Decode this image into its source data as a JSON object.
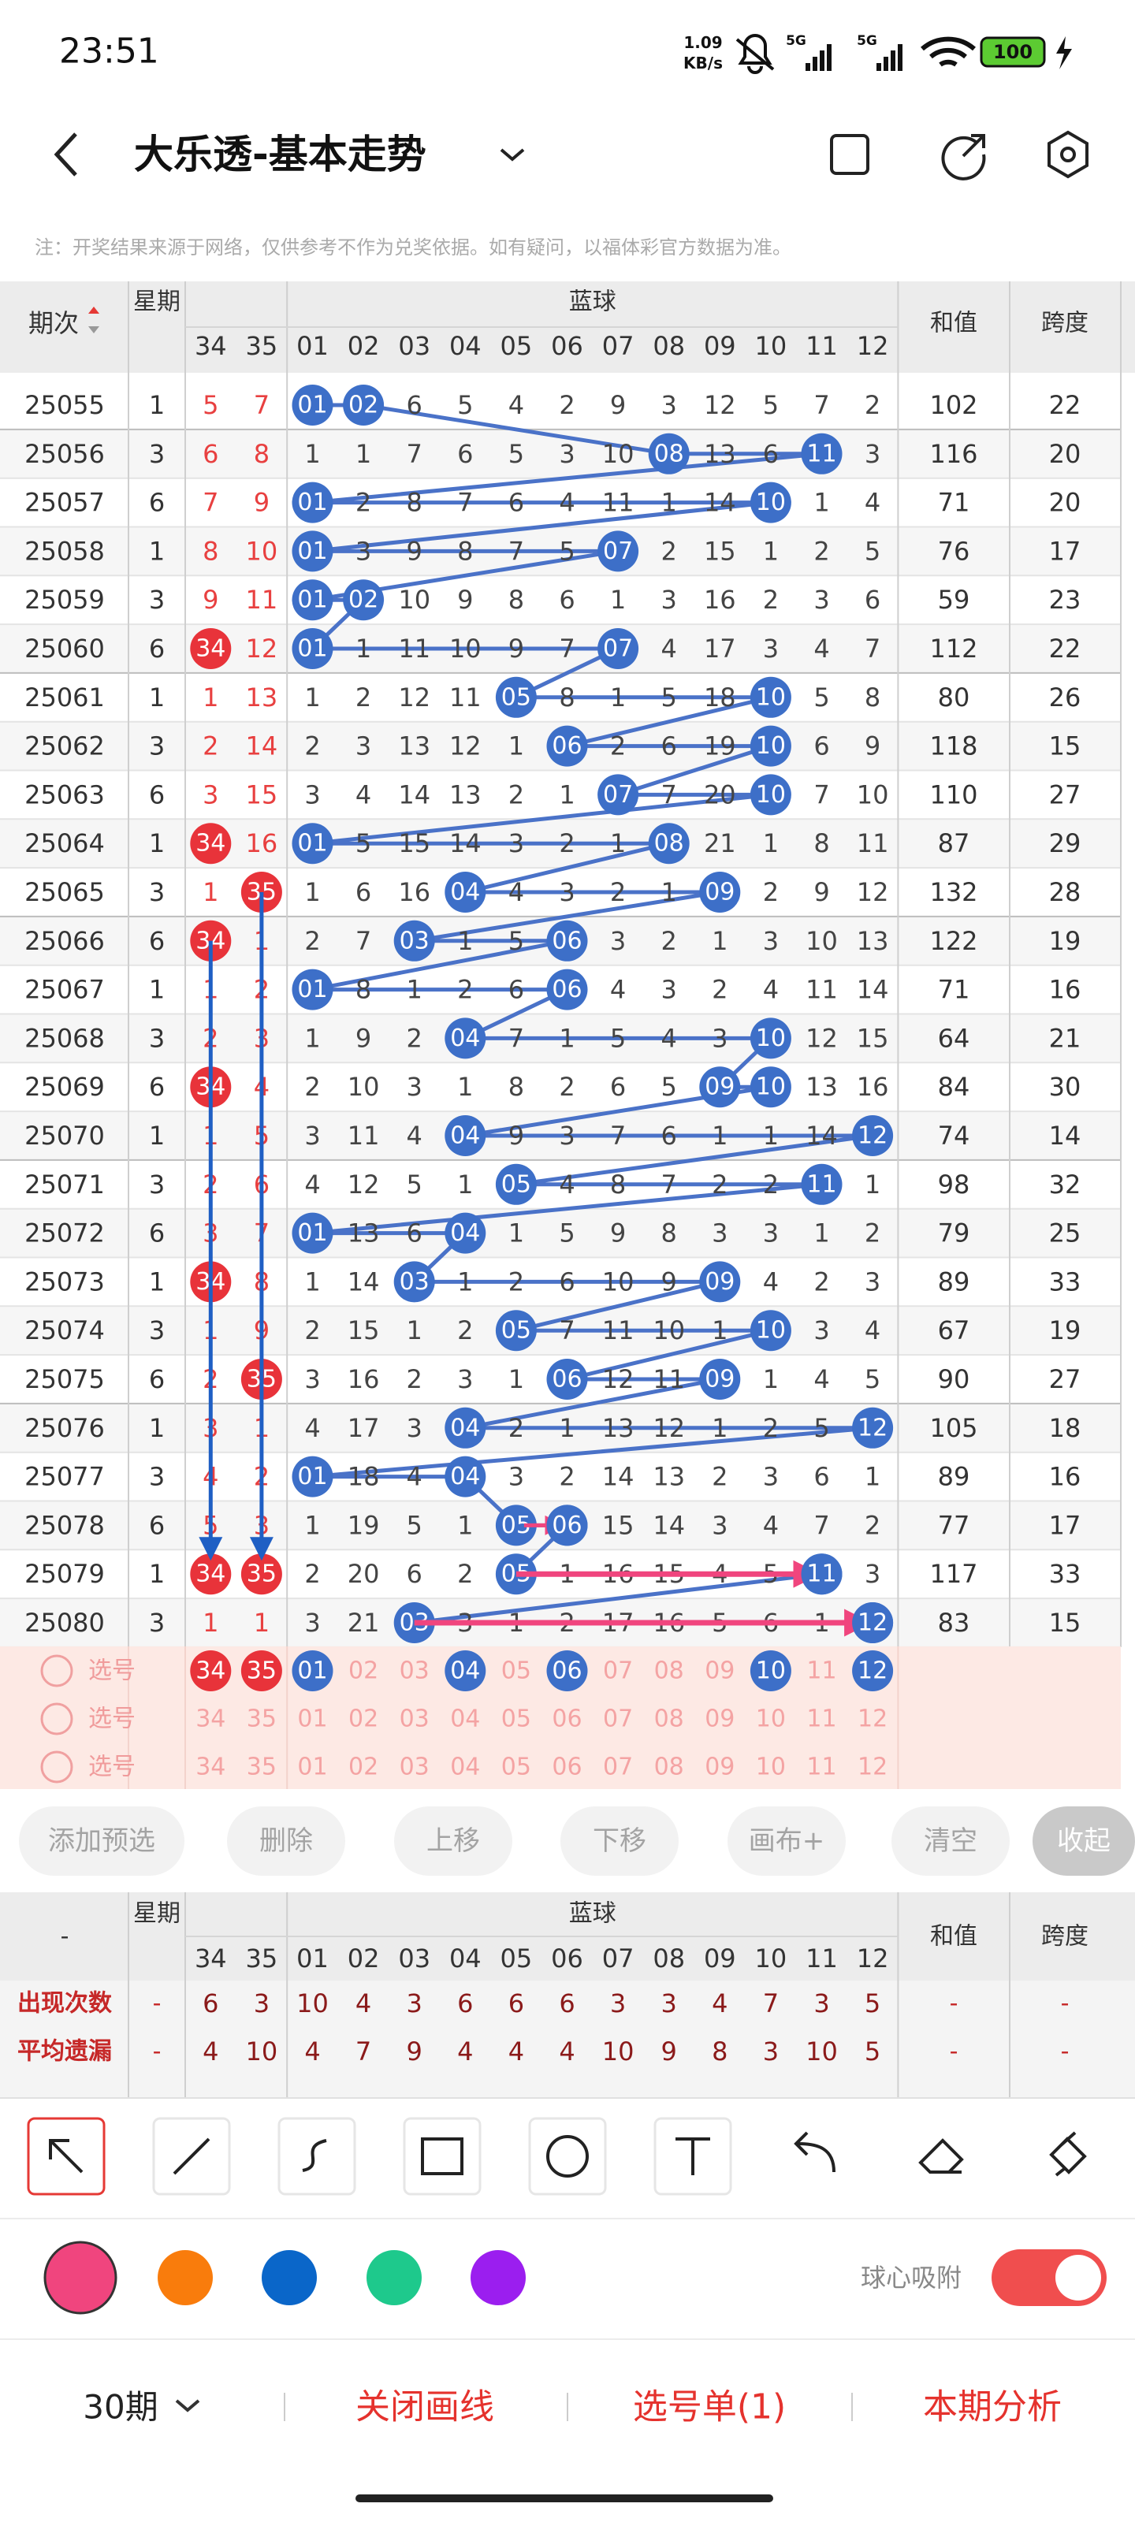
{
  "status_bar": {
    "time": "23:51",
    "speed": "1.09",
    "speed_unit": "KB/s",
    "net1": "5G",
    "net2": "5G",
    "battery": "100"
  },
  "header": {
    "title": "大乐透-基本走势"
  },
  "notice": "注：开奖结果来源于网络，仅供参考不作为兑奖依据。如有疑问，以福体彩官方数据为准。",
  "trend_table": {
    "columns": {
      "period": "期次",
      "weekday": "星期",
      "group": "蓝球",
      "numbers": [
        "34",
        "35",
        "01",
        "02",
        "03",
        "04",
        "05",
        "06",
        "07",
        "08",
        "09",
        "10",
        "11",
        "12"
      ],
      "sum": "和值",
      "span": "跨度"
    },
    "rows": [
      {
        "period": "25055",
        "weekday": "1",
        "cells": [
          "5",
          "7",
          {
            "ball": "01"
          },
          {
            "ball": "02"
          },
          "6",
          "5",
          "4",
          "2",
          "9",
          "3",
          "12",
          "5",
          "7",
          "2"
        ],
        "sum": "102",
        "span": "22"
      },
      {
        "period": "25056",
        "weekday": "3",
        "cells": [
          "6",
          "8",
          "1",
          "1",
          "7",
          "6",
          "5",
          "3",
          "10",
          {
            "ball": "08"
          },
          "13",
          "6",
          {
            "ball": "11"
          },
          "3"
        ],
        "sum": "116",
        "span": "20"
      },
      {
        "period": "25057",
        "weekday": "6",
        "cells": [
          "7",
          "9",
          {
            "ball": "01"
          },
          "2",
          "8",
          "7",
          "6",
          "4",
          "11",
          "1",
          "14",
          {
            "ball": "10"
          },
          "1",
          "4"
        ],
        "sum": "71",
        "span": "20"
      },
      {
        "period": "25058",
        "weekday": "1",
        "cells": [
          "8",
          "10",
          {
            "ball": "01"
          },
          "3",
          "9",
          "8",
          "7",
          "5",
          {
            "ball": "07"
          },
          "2",
          "15",
          "1",
          "2",
          "5"
        ],
        "sum": "76",
        "span": "17"
      },
      {
        "period": "25059",
        "weekday": "3",
        "cells": [
          "9",
          "11",
          {
            "ball": "01"
          },
          {
            "ball": "02"
          },
          "10",
          "9",
          "8",
          "6",
          "1",
          "3",
          "16",
          "2",
          "3",
          "6"
        ],
        "sum": "59",
        "span": "23"
      },
      {
        "period": "25060",
        "weekday": "6",
        "cells": [
          {
            "ball": "34"
          },
          "12",
          {
            "ball": "01"
          },
          "1",
          "11",
          "10",
          "9",
          "7",
          {
            "ball": "07"
          },
          "4",
          "17",
          "3",
          "4",
          "7"
        ],
        "sum": "112",
        "span": "22"
      },
      {
        "period": "25061",
        "weekday": "1",
        "cells": [
          "1",
          "13",
          "1",
          "2",
          "12",
          "11",
          {
            "ball": "05"
          },
          "8",
          "1",
          "5",
          "18",
          {
            "ball": "10"
          },
          "5",
          "8"
        ],
        "sum": "80",
        "span": "26"
      },
      {
        "period": "25062",
        "weekday": "3",
        "cells": [
          "2",
          "14",
          "2",
          "3",
          "13",
          "12",
          "1",
          {
            "ball": "06"
          },
          "2",
          "6",
          "19",
          {
            "ball": "10"
          },
          "6",
          "9"
        ],
        "sum": "118",
        "span": "15"
      },
      {
        "period": "25063",
        "weekday": "6",
        "cells": [
          "3",
          "15",
          "3",
          "4",
          "14",
          "13",
          "2",
          "1",
          {
            "ball": "07"
          },
          "7",
          "20",
          {
            "ball": "10"
          },
          "7",
          "10"
        ],
        "sum": "110",
        "span": "27"
      },
      {
        "period": "25064",
        "weekday": "1",
        "cells": [
          {
            "ball": "34"
          },
          "16",
          {
            "ball": "01"
          },
          "5",
          "15",
          "14",
          "3",
          "2",
          "1",
          {
            "ball": "08"
          },
          "21",
          "1",
          "8",
          "11"
        ],
        "sum": "87",
        "span": "29"
      },
      {
        "period": "25065",
        "weekday": "3",
        "cells": [
          "1",
          {
            "ball": "35"
          },
          "1",
          "6",
          "16",
          {
            "ball": "04"
          },
          "4",
          "3",
          "2",
          "1",
          {
            "ball": "09"
          },
          "2",
          "9",
          "12"
        ],
        "sum": "132",
        "span": "28"
      },
      {
        "period": "25066",
        "weekday": "6",
        "cells": [
          {
            "ball": "34"
          },
          "1",
          "2",
          "7",
          {
            "ball": "03"
          },
          "1",
          "5",
          {
            "ball": "06"
          },
          "3",
          "2",
          "1",
          "3",
          "10",
          "13"
        ],
        "sum": "122",
        "span": "19"
      },
      {
        "period": "25067",
        "weekday": "1",
        "cells": [
          "1",
          "2",
          {
            "ball": "01"
          },
          "8",
          "1",
          "2",
          "6",
          {
            "ball": "06"
          },
          "4",
          "3",
          "2",
          "4",
          "11",
          "14"
        ],
        "sum": "71",
        "span": "16"
      },
      {
        "period": "25068",
        "weekday": "3",
        "cells": [
          "2",
          "3",
          "1",
          "9",
          "2",
          {
            "ball": "04"
          },
          "7",
          "1",
          "5",
          "4",
          "3",
          {
            "ball": "10"
          },
          "12",
          "15"
        ],
        "sum": "64",
        "span": "21"
      },
      {
        "period": "25069",
        "weekday": "6",
        "cells": [
          {
            "ball": "34"
          },
          "4",
          "2",
          "10",
          "3",
          "1",
          "8",
          "2",
          "6",
          "5",
          {
            "ball": "09"
          },
          {
            "ball": "10"
          },
          "13",
          "16"
        ],
        "sum": "84",
        "span": "30"
      },
      {
        "period": "25070",
        "weekday": "1",
        "cells": [
          "1",
          "5",
          "3",
          "11",
          "4",
          {
            "ball": "04"
          },
          "9",
          "3",
          "7",
          "6",
          "1",
          "1",
          "14",
          {
            "ball": "12"
          }
        ],
        "sum": "74",
        "span": "14"
      },
      {
        "period": "25071",
        "weekday": "3",
        "cells": [
          "2",
          "6",
          "4",
          "12",
          "5",
          "1",
          {
            "ball": "05"
          },
          "4",
          "8",
          "7",
          "2",
          "2",
          {
            "ball": "11"
          },
          "1"
        ],
        "sum": "98",
        "span": "32"
      },
      {
        "period": "25072",
        "weekday": "6",
        "cells": [
          "3",
          "7",
          {
            "ball": "01"
          },
          "13",
          "6",
          {
            "ball": "04"
          },
          "1",
          "5",
          "9",
          "8",
          "3",
          "3",
          "1",
          "2"
        ],
        "sum": "79",
        "span": "25"
      },
      {
        "period": "25073",
        "weekday": "1",
        "cells": [
          {
            "ball": "34"
          },
          "8",
          "1",
          "14",
          {
            "ball": "03"
          },
          "1",
          "2",
          "6",
          "10",
          "9",
          {
            "ball": "09"
          },
          "4",
          "2",
          "3"
        ],
        "sum": "89",
        "span": "33"
      },
      {
        "period": "25074",
        "weekday": "3",
        "cells": [
          "1",
          "9",
          "2",
          "15",
          "1",
          "2",
          {
            "ball": "05"
          },
          "7",
          "11",
          "10",
          "1",
          {
            "ball": "10"
          },
          "3",
          "4"
        ],
        "sum": "67",
        "span": "19"
      },
      {
        "period": "25075",
        "weekday": "6",
        "cells": [
          "2",
          {
            "ball": "35"
          },
          "3",
          "16",
          "2",
          "3",
          "1",
          {
            "ball": "06"
          },
          "12",
          "11",
          {
            "ball": "09"
          },
          "1",
          "4",
          "5"
        ],
        "sum": "90",
        "span": "27"
      },
      {
        "period": "25076",
        "weekday": "1",
        "cells": [
          "3",
          "1",
          "4",
          "17",
          "3",
          {
            "ball": "04"
          },
          "2",
          "1",
          "13",
          "12",
          "1",
          "2",
          "5",
          {
            "ball": "12"
          }
        ],
        "sum": "105",
        "span": "18"
      },
      {
        "period": "25077",
        "weekday": "3",
        "cells": [
          "4",
          "2",
          {
            "ball": "01"
          },
          "18",
          "4",
          {
            "ball": "04"
          },
          "3",
          "2",
          "14",
          "13",
          "2",
          "3",
          "6",
          "1"
        ],
        "sum": "89",
        "span": "16"
      },
      {
        "period": "25078",
        "weekday": "6",
        "cells": [
          "5",
          "3",
          "1",
          "19",
          "5",
          "1",
          {
            "ball": "05"
          },
          {
            "ball": "06"
          },
          "15",
          "14",
          "3",
          "4",
          "7",
          "2"
        ],
        "sum": "77",
        "span": "17"
      },
      {
        "period": "25079",
        "weekday": "1",
        "cells": [
          {
            "ball": "34"
          },
          {
            "ball": "35"
          },
          "2",
          "20",
          "6",
          "2",
          {
            "ball": "05"
          },
          "1",
          "16",
          "15",
          "4",
          "5",
          {
            "ball": "11"
          },
          "3"
        ],
        "sum": "117",
        "span": "33"
      },
      {
        "period": "25080",
        "weekday": "3",
        "cells": [
          "1",
          "1",
          "3",
          "21",
          {
            "ball": "03"
          },
          "3",
          "1",
          "2",
          "17",
          "16",
          "5",
          "6",
          "1",
          {
            "ball": "12"
          }
        ],
        "sum": "83",
        "span": "15"
      }
    ]
  },
  "picks": [
    {
      "label": "选号",
      "cells": [
        {
          "ball": "34"
        },
        {
          "ball": "35"
        },
        {
          "ball": "01"
        },
        "02",
        "03",
        {
          "ball": "04"
        },
        "05",
        {
          "ball": "06"
        },
        "07",
        "08",
        "09",
        {
          "ball": "10"
        },
        "11",
        {
          "ball": "12"
        }
      ]
    },
    {
      "label": "选号",
      "cells": [
        "34",
        "35",
        "01",
        "02",
        "03",
        "04",
        "05",
        "06",
        "07",
        "08",
        "09",
        "10",
        "11",
        "12"
      ]
    },
    {
      "label": "选号",
      "cells": [
        "34",
        "35",
        "01",
        "02",
        "03",
        "04",
        "05",
        "06",
        "07",
        "08",
        "09",
        "10",
        "11",
        "12"
      ]
    }
  ],
  "actions": [
    "添加预选",
    "删除",
    "上移",
    "下移",
    "画布+",
    "清空",
    "收起"
  ],
  "stats_table": {
    "columns": {
      "corner": "-",
      "weekday": "星期",
      "group": "蓝球",
      "numbers": [
        "34",
        "35",
        "01",
        "02",
        "03",
        "04",
        "05",
        "06",
        "07",
        "08",
        "09",
        "10",
        "11",
        "12"
      ],
      "sum": "和值",
      "span": "跨度"
    },
    "rows": [
      {
        "label": "出现次数",
        "weekday": "-",
        "cells": [
          "6",
          "3",
          "10",
          "4",
          "3",
          "6",
          "6",
          "6",
          "3",
          "3",
          "4",
          "7",
          "3",
          "5"
        ],
        "sum": "-",
        "span": "-"
      },
      {
        "label": "平均遗漏",
        "weekday": "-",
        "cells": [
          "4",
          "10",
          "4",
          "7",
          "9",
          "4",
          "4",
          "4",
          "10",
          "9",
          "8",
          "3",
          "10",
          "5"
        ],
        "sum": "-",
        "span": "-"
      }
    ]
  },
  "drawing": {
    "colors": [
      "#f0457e",
      "#f97c0c",
      "#0a66c9",
      "#1ec98c",
      "#9b1eef"
    ],
    "snap_label": "球心吸附",
    "snap_on": true
  },
  "bottom_bar": {
    "period_select": "30期",
    "close_lines": "关闭画线",
    "pick_list": "选号单(1)",
    "analysis": "本期分析"
  }
}
